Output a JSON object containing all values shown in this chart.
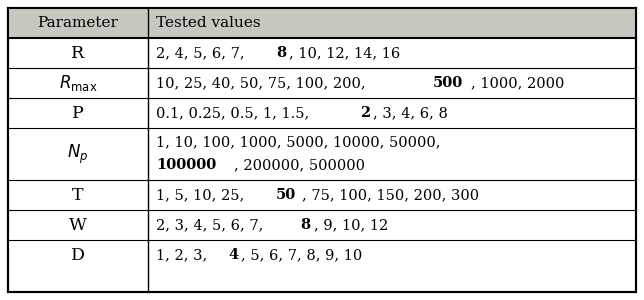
{
  "col1_header": "Parameter",
  "col2_header": "Tested values",
  "rows": [
    {
      "param_normal": "R",
      "param_math": null,
      "values_line1": [
        [
          "2, 4, 5, 6, 7, ",
          false
        ],
        [
          "8",
          true
        ],
        [
          ", 10, 12, 14, 16",
          false
        ]
      ],
      "values_line2": null
    },
    {
      "param_normal": null,
      "param_math": "$R_{\\mathrm{max}}$",
      "values_line1": [
        [
          "10, 25, 40, 50, 75, 100, 200, ",
          false
        ],
        [
          "500",
          true
        ],
        [
          ", 1000, 2000",
          false
        ]
      ],
      "values_line2": null
    },
    {
      "param_normal": "P",
      "param_math": null,
      "values_line1": [
        [
          "0.1, 0.25, 0.5, 1, 1.5, ",
          false
        ],
        [
          "2",
          true
        ],
        [
          ", 3, 4, 6, 8",
          false
        ]
      ],
      "values_line2": null
    },
    {
      "param_normal": null,
      "param_math": "$N_{p}$",
      "values_line1": [
        [
          "1, 10, 100, 1000, 5000, 10000, 50000,",
          false
        ]
      ],
      "values_line2": [
        [
          "100000",
          true
        ],
        [
          ", 200000, 500000",
          false
        ]
      ]
    },
    {
      "param_normal": "T",
      "param_math": null,
      "values_line1": [
        [
          "1, 5, 10, 25, ",
          false
        ],
        [
          "50",
          true
        ],
        [
          ", 75, 100, 150, 200, 300",
          false
        ]
      ],
      "values_line2": null
    },
    {
      "param_normal": "W",
      "param_math": null,
      "values_line1": [
        [
          "2, 3, 4, 5, 6, 7, ",
          false
        ],
        [
          "8",
          true
        ],
        [
          ", 9, 10, 12",
          false
        ]
      ],
      "values_line2": null
    },
    {
      "param_normal": "D",
      "param_math": null,
      "values_line1": [
        [
          "1, 2, 3, ",
          false
        ],
        [
          "4",
          true
        ],
        [
          ", 5, 6, 7, 8, 9, 10",
          false
        ]
      ],
      "values_line2": null
    }
  ],
  "header_bg": "#c8c8c0",
  "font_size": 10.5,
  "header_font_size": 11
}
